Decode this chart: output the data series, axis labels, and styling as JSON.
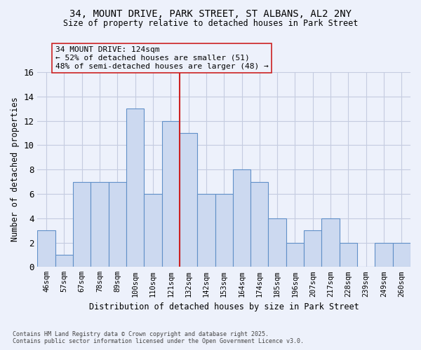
{
  "title_line1": "34, MOUNT DRIVE, PARK STREET, ST ALBANS, AL2 2NY",
  "title_line2": "Size of property relative to detached houses in Park Street",
  "xlabel": "Distribution of detached houses by size in Park Street",
  "ylabel": "Number of detached properties",
  "categories": [
    "46sqm",
    "57sqm",
    "67sqm",
    "78sqm",
    "89sqm",
    "100sqm",
    "110sqm",
    "121sqm",
    "132sqm",
    "142sqm",
    "153sqm",
    "164sqm",
    "174sqm",
    "185sqm",
    "196sqm",
    "207sqm",
    "217sqm",
    "228sqm",
    "239sqm",
    "249sqm",
    "260sqm"
  ],
  "values": [
    3,
    1,
    7,
    7,
    7,
    13,
    6,
    12,
    11,
    6,
    6,
    8,
    7,
    4,
    2,
    3,
    4,
    2,
    0,
    2,
    2
  ],
  "bar_color": "#ccd9f0",
  "bar_edge_color": "#6090c8",
  "red_line_index": 7,
  "annotation_label": "34 MOUNT DRIVE: 124sqm",
  "annotation_line1": "← 52% of detached houses are smaller (51)",
  "annotation_line2": "48% of semi-detached houses are larger (48) →",
  "ylim_max": 16,
  "yticks": [
    0,
    2,
    4,
    6,
    8,
    10,
    12,
    14,
    16
  ],
  "footer_line1": "Contains HM Land Registry data © Crown copyright and database right 2025.",
  "footer_line2": "Contains public sector information licensed under the Open Government Licence v3.0.",
  "bg_color": "#edf1fb",
  "grid_color": "#c5cce0"
}
